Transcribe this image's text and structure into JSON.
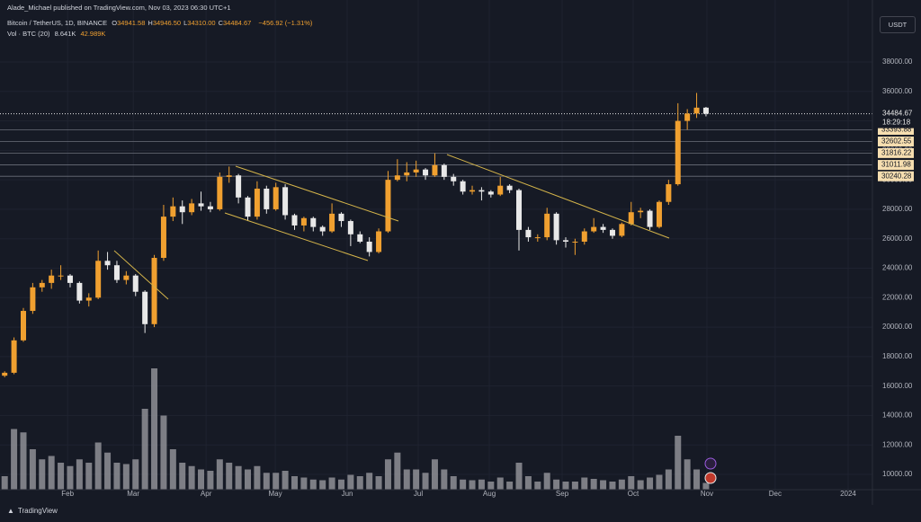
{
  "header": {
    "author": "Alade_Michael published on TradingView.com, Nov 03, 2023 06:30 UTC+1",
    "symbol": "Bitcoin / TetherUS, 1D, BINANCE",
    "ohlc": [
      {
        "label": "O",
        "value": "34941.58"
      },
      {
        "label": "H",
        "value": "34946.50"
      },
      {
        "label": "L",
        "value": "34310.00"
      },
      {
        "label": "C",
        "value": "34484.67"
      }
    ],
    "change": "−456.92 (−1.31%)",
    "volume_label": "Vol · BTC (20)",
    "volume_value": "8.641K",
    "volume_ma": "42.989K",
    "currency": "USDT",
    "brand": "TradingView"
  },
  "chart_data": {
    "type": "candlestick",
    "up_color": "#f0a030",
    "down_color": "#e8e8e8",
    "volume_color": "#8f9196",
    "grid": true,
    "xlim": [
      -0.5,
      92.8
    ],
    "xticks": [
      {
        "value": 6.73,
        "label": "Feb"
      },
      {
        "value": 13.75,
        "label": "Mar"
      },
      {
        "value": 21.54,
        "label": "Apr"
      },
      {
        "value": 28.94,
        "label": "May"
      },
      {
        "value": 36.63,
        "label": "Jun"
      },
      {
        "value": 44.23,
        "label": "Jul"
      },
      {
        "value": 51.83,
        "label": "Aug"
      },
      {
        "value": 59.62,
        "label": "Sep"
      },
      {
        "value": 67.21,
        "label": "Oct"
      },
      {
        "value": 75.1,
        "label": "Nov"
      },
      {
        "value": 82.4,
        "label": "Dec"
      },
      {
        "value": 90.2,
        "label": "2024"
      }
    ],
    "ylim": [
      8963,
      42209
    ],
    "yticks": [
      {
        "value": 10000,
        "label": "10000.00"
      },
      {
        "value": 12000,
        "label": "12000.00"
      },
      {
        "value": 14000,
        "label": "14000.00"
      },
      {
        "value": 16000,
        "label": "16000.00"
      },
      {
        "value": 18000,
        "label": "18000.00"
      },
      {
        "value": 20000,
        "label": "20000.00"
      },
      {
        "value": 22000,
        "label": "22000.00"
      },
      {
        "value": 24000,
        "label": "24000.00"
      },
      {
        "value": 26000,
        "label": "26000.00"
      },
      {
        "value": 28000,
        "label": "28000.00"
      },
      {
        "value": 30000,
        "label": "30000.00"
      },
      {
        "value": 32000,
        "label": "32000.00"
      },
      {
        "value": 34000,
        "label": "34000.00"
      },
      {
        "value": 36000,
        "label": "36000.00"
      },
      {
        "value": 38000,
        "label": "38000.00"
      }
    ],
    "current_price": 34484.67,
    "countdown": "18:29:18",
    "levels": [
      33393.88,
      32602.55,
      31816.22,
      31011.98,
      30240.28
    ],
    "candles": [
      [
        16700,
        17000,
        16600,
        16900
      ],
      [
        16900,
        19300,
        16800,
        19100
      ],
      [
        19100,
        21300,
        19000,
        21100
      ],
      [
        21100,
        23000,
        20900,
        22700
      ],
      [
        22700,
        23200,
        22400,
        23000
      ],
      [
        23000,
        23900,
        22600,
        23500
      ],
      [
        23500,
        24200,
        23200,
        23500
      ],
      [
        23500,
        23600,
        22700,
        23000
      ],
      [
        23000,
        23100,
        21600,
        21800
      ],
      [
        21800,
        22300,
        21400,
        22000
      ],
      [
        22000,
        25200,
        21900,
        24500
      ],
      [
        24500,
        25100,
        23900,
        24200
      ],
      [
        24200,
        24500,
        23000,
        23200
      ],
      [
        23200,
        23800,
        22900,
        23500
      ],
      [
        23500,
        23600,
        22100,
        22400
      ],
      [
        22400,
        22500,
        19600,
        20200
      ],
      [
        20200,
        24900,
        20000,
        24700
      ],
      [
        24700,
        28300,
        24500,
        27500
      ],
      [
        27500,
        28800,
        27200,
        28200
      ],
      [
        28200,
        28600,
        27000,
        27800
      ],
      [
        27800,
        28700,
        27600,
        28400
      ],
      [
        28400,
        29200,
        27900,
        28200
      ],
      [
        28200,
        28500,
        27800,
        28000
      ],
      [
        28000,
        30500,
        27900,
        30200
      ],
      [
        30200,
        30900,
        29800,
        30300
      ],
      [
        30300,
        30400,
        28400,
        28800
      ],
      [
        28800,
        28900,
        27200,
        27500
      ],
      [
        27500,
        29900,
        27300,
        29400
      ],
      [
        29400,
        29600,
        27700,
        28000
      ],
      [
        28000,
        29800,
        27900,
        29500
      ],
      [
        29500,
        29700,
        27300,
        27600
      ],
      [
        27600,
        27700,
        26600,
        26900
      ],
      [
        26900,
        27500,
        26500,
        27400
      ],
      [
        27400,
        27500,
        26500,
        26800
      ],
      [
        26800,
        26900,
        26200,
        26500
      ],
      [
        26500,
        28400,
        26400,
        27700
      ],
      [
        27700,
        27800,
        26800,
        27200
      ],
      [
        27200,
        27300,
        25500,
        26300
      ],
      [
        26300,
        26500,
        25700,
        25800
      ],
      [
        25800,
        26100,
        24800,
        25100
      ],
      [
        25100,
        26700,
        25000,
        26500
      ],
      [
        26500,
        30600,
        26400,
        30000
      ],
      [
        30000,
        31400,
        29900,
        30300
      ],
      [
        30300,
        31200,
        29900,
        30500
      ],
      [
        30500,
        31300,
        30200,
        30700
      ],
      [
        30700,
        30800,
        30000,
        30300
      ],
      [
        30300,
        31800,
        30200,
        31000
      ],
      [
        31000,
        31100,
        30000,
        30200
      ],
      [
        30200,
        30400,
        29600,
        29900
      ],
      [
        29900,
        30000,
        29000,
        29200
      ],
      [
        29200,
        29600,
        29000,
        29300
      ],
      [
        29300,
        29500,
        28600,
        29200
      ],
      [
        29200,
        29300,
        28800,
        29000
      ],
      [
        29000,
        30200,
        28900,
        29600
      ],
      [
        29600,
        29700,
        29100,
        29300
      ],
      [
        29300,
        29400,
        25200,
        26600
      ],
      [
        26600,
        26800,
        25800,
        26100
      ],
      [
        26100,
        26300,
        25800,
        26100
      ],
      [
        26100,
        28100,
        25900,
        27700
      ],
      [
        27700,
        27800,
        25600,
        25900
      ],
      [
        25900,
        26100,
        25400,
        25800
      ],
      [
        25800,
        26000,
        24900,
        25800
      ],
      [
        25800,
        26700,
        25600,
        26500
      ],
      [
        26500,
        27400,
        26400,
        26800
      ],
      [
        26800,
        27000,
        26400,
        26600
      ],
      [
        26600,
        26700,
        26000,
        26200
      ],
      [
        26200,
        27100,
        26100,
        27000
      ],
      [
        27000,
        28500,
        26900,
        27800
      ],
      [
        27800,
        28100,
        27400,
        27900
      ],
      [
        27900,
        28000,
        26600,
        26800
      ],
      [
        26800,
        28600,
        26700,
        28500
      ],
      [
        28500,
        30000,
        28300,
        29700
      ],
      [
        29700,
        35200,
        29600,
        34000
      ],
      [
        34000,
        34800,
        33400,
        34500
      ],
      [
        34500,
        35900,
        34200,
        34900
      ],
      [
        34900,
        34950,
        34310,
        34484.67
      ]
    ],
    "volume_lim": [
      0,
      200
    ],
    "volume": [
      20,
      90,
      85,
      60,
      45,
      50,
      40,
      35,
      45,
      40,
      70,
      55,
      40,
      38,
      45,
      120,
      180,
      110,
      60,
      40,
      35,
      30,
      28,
      45,
      40,
      35,
      30,
      35,
      25,
      25,
      28,
      20,
      18,
      15,
      14,
      18,
      15,
      22,
      20,
      25,
      20,
      45,
      55,
      30,
      30,
      25,
      45,
      30,
      20,
      15,
      14,
      15,
      12,
      18,
      12,
      40,
      20,
      12,
      25,
      15,
      12,
      12,
      18,
      16,
      14,
      12,
      15,
      20,
      14,
      18,
      22,
      30,
      80,
      45,
      30,
      10
    ]
  }
}
